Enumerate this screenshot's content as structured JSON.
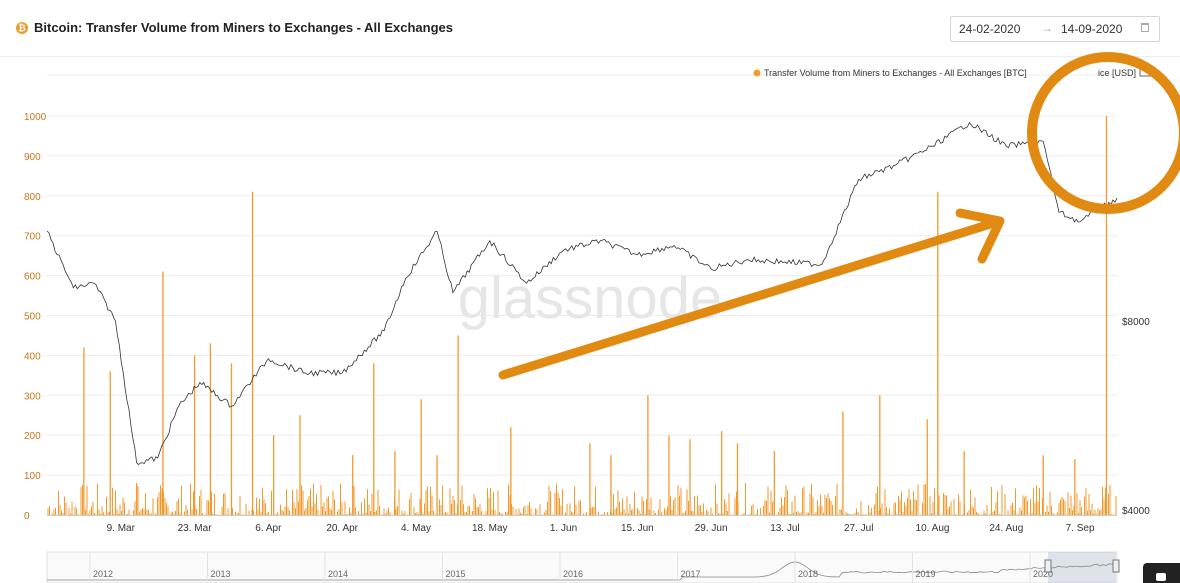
{
  "header": {
    "title": "Bitcoin: Transfer Volume from Miners to Exchanges - All Exchanges",
    "date_start": "24-02-2020",
    "date_arrow": "→",
    "date_end": "14-09-2020",
    "icon_color": "#f29a2e"
  },
  "legend": {
    "volume_label": "Transfer Volume from Miners to Exchanges - All Exchanges [BTC]",
    "price_label": "ice [USD]"
  },
  "watermark": "glassnode",
  "navigator_years": [
    "2012",
    "2013",
    "2014",
    "2015",
    "2016",
    "2017",
    "2018",
    "2019",
    "2020"
  ],
  "colors": {
    "volume": "#f39a2c",
    "annotation": "#e08a12",
    "price": "#333333"
  },
  "chart_data": {
    "type": "bar",
    "title": "Bitcoin: Transfer Volume from Miners to Exchanges - All Exchanges",
    "x_range": [
      "2020-02-24",
      "2020-09-14"
    ],
    "x_tick_labels": [
      "9. Mar",
      "23. Mar",
      "6. Apr",
      "20. Apr",
      "4. May",
      "18. May",
      "1. Jun",
      "15. Jun",
      "29. Jun",
      "13. Jul",
      "27. Jul",
      "10. Aug",
      "24. Aug",
      "7. Sep"
    ],
    "y_left_ticks": [
      "0",
      "100",
      "200",
      "300",
      "400",
      "500",
      "600",
      "700",
      "800",
      "900",
      "1000"
    ],
    "y_left_range": [
      0,
      1000
    ],
    "y_right_ticks": [
      "$4000",
      "$8000"
    ],
    "grid": true,
    "legend_position": "top-right",
    "series": [
      {
        "name": "Transfer Volume from Miners to Exchanges - All Exchanges [BTC]",
        "color": "#f39a2c",
        "spikes": [
          {
            "date": "2020-03-02",
            "value": 420
          },
          {
            "date": "2020-03-07",
            "value": 360
          },
          {
            "date": "2020-03-12",
            "value": 80
          },
          {
            "date": "2020-03-17",
            "value": 610
          },
          {
            "date": "2020-03-23",
            "value": 400
          },
          {
            "date": "2020-03-26",
            "value": 430
          },
          {
            "date": "2020-03-30",
            "value": 380
          },
          {
            "date": "2020-04-03",
            "value": 810
          },
          {
            "date": "2020-04-07",
            "value": 200
          },
          {
            "date": "2020-04-12",
            "value": 250
          },
          {
            "date": "2020-04-22",
            "value": 150
          },
          {
            "date": "2020-04-26",
            "value": 380
          },
          {
            "date": "2020-04-30",
            "value": 160
          },
          {
            "date": "2020-05-05",
            "value": 290
          },
          {
            "date": "2020-05-08",
            "value": 150
          },
          {
            "date": "2020-05-12",
            "value": 450
          },
          {
            "date": "2020-05-22",
            "value": 220
          },
          {
            "date": "2020-06-06",
            "value": 180
          },
          {
            "date": "2020-06-10",
            "value": 150
          },
          {
            "date": "2020-06-17",
            "value": 300
          },
          {
            "date": "2020-06-21",
            "value": 200
          },
          {
            "date": "2020-06-25",
            "value": 190
          },
          {
            "date": "2020-07-01",
            "value": 210
          },
          {
            "date": "2020-07-04",
            "value": 180
          },
          {
            "date": "2020-07-11",
            "value": 160
          },
          {
            "date": "2020-07-24",
            "value": 260
          },
          {
            "date": "2020-07-31",
            "value": 300
          },
          {
            "date": "2020-08-09",
            "value": 240
          },
          {
            "date": "2020-08-11",
            "value": 810
          },
          {
            "date": "2020-08-16",
            "value": 160
          },
          {
            "date": "2020-08-31",
            "value": 150
          },
          {
            "date": "2020-09-06",
            "value": 140
          },
          {
            "date": "2020-09-12",
            "value": 1000
          }
        ],
        "baseline_range": [
          0,
          80
        ]
      },
      {
        "name": "Price [USD]",
        "color": "#333333",
        "axis": "right",
        "points": [
          {
            "date": "2020-02-24",
            "value": 9900
          },
          {
            "date": "2020-02-29",
            "value": 8700
          },
          {
            "date": "2020-03-04",
            "value": 8800
          },
          {
            "date": "2020-03-08",
            "value": 8000
          },
          {
            "date": "2020-03-12",
            "value": 5000
          },
          {
            "date": "2020-03-16",
            "value": 5100
          },
          {
            "date": "2020-03-20",
            "value": 6200
          },
          {
            "date": "2020-03-24",
            "value": 6700
          },
          {
            "date": "2020-03-30",
            "value": 6200
          },
          {
            "date": "2020-04-06",
            "value": 7200
          },
          {
            "date": "2020-04-13",
            "value": 6900
          },
          {
            "date": "2020-04-20",
            "value": 6900
          },
          {
            "date": "2020-04-28",
            "value": 7800
          },
          {
            "date": "2020-05-02",
            "value": 8900
          },
          {
            "date": "2020-05-08",
            "value": 9900
          },
          {
            "date": "2020-05-11",
            "value": 8600
          },
          {
            "date": "2020-05-18",
            "value": 9700
          },
          {
            "date": "2020-05-25",
            "value": 8800
          },
          {
            "date": "2020-06-01",
            "value": 9500
          },
          {
            "date": "2020-06-08",
            "value": 9700
          },
          {
            "date": "2020-06-15",
            "value": 9400
          },
          {
            "date": "2020-06-22",
            "value": 9600
          },
          {
            "date": "2020-06-29",
            "value": 9100
          },
          {
            "date": "2020-07-06",
            "value": 9300
          },
          {
            "date": "2020-07-13",
            "value": 9250
          },
          {
            "date": "2020-07-20",
            "value": 9200
          },
          {
            "date": "2020-07-27",
            "value": 11000
          },
          {
            "date": "2020-08-03",
            "value": 11300
          },
          {
            "date": "2020-08-10",
            "value": 11700
          },
          {
            "date": "2020-08-17",
            "value": 12200
          },
          {
            "date": "2020-08-24",
            "value": 11700
          },
          {
            "date": "2020-08-31",
            "value": 11800
          },
          {
            "date": "2020-09-03",
            "value": 10300
          },
          {
            "date": "2020-09-07",
            "value": 10100
          },
          {
            "date": "2020-09-14",
            "value": 10600
          }
        ]
      }
    ]
  }
}
